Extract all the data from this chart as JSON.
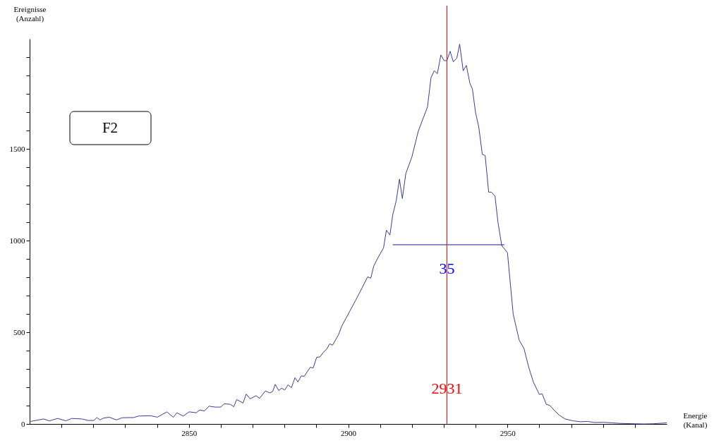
{
  "chart_data": {
    "type": "line",
    "xlabel": "Energie\n(Kanal)",
    "ylabel": "Ereignisse\n(Anzahl)",
    "xlim": [
      2800,
      3000
    ],
    "ylim": [
      0,
      2100
    ],
    "xticks": [
      {
        "value": 2810,
        "label": null
      },
      {
        "value": 2820,
        "label": null
      },
      {
        "value": 2830,
        "label": null
      },
      {
        "value": 2840,
        "label": null
      },
      2850,
      {
        "value": 2860,
        "label": null
      },
      {
        "value": 2870,
        "label": null
      },
      {
        "value": 2880,
        "label": null
      },
      {
        "value": 2890,
        "label": null
      },
      2900,
      {
        "value": 2910,
        "label": null
      },
      {
        "value": 2920,
        "label": null
      },
      {
        "value": 2930,
        "label": null
      },
      {
        "value": 2940,
        "label": null
      },
      2950,
      {
        "value": 2960,
        "label": null
      },
      {
        "value": 2970,
        "label": null
      },
      {
        "value": 2980,
        "label": null
      },
      {
        "value": 2990,
        "label": null
      }
    ],
    "yticks": [
      0,
      {
        "value": 100,
        "label": null
      },
      {
        "value": 200,
        "label": null
      },
      {
        "value": 300,
        "label": null
      },
      {
        "value": 400,
        "label": null
      },
      500,
      {
        "value": 600,
        "label": null
      },
      {
        "value": 700,
        "label": null
      },
      {
        "value": 800,
        "label": null
      },
      {
        "value": 900,
        "label": null
      },
      1000,
      {
        "value": 1100,
        "label": null
      },
      {
        "value": 1200,
        "label": null
      },
      {
        "value": 1300,
        "label": null
      },
      {
        "value": 1400,
        "label": null
      },
      1500,
      {
        "value": 1600,
        "label": null
      },
      {
        "value": 1700,
        "label": null
      },
      {
        "value": 1800,
        "label": null
      },
      {
        "value": 1900,
        "label": null
      },
      {
        "value": 2000,
        "label": null
      }
    ],
    "grid": false,
    "marker": "none",
    "line_style": "solid",
    "series": [
      {
        "color": "#3c3c9c",
        "x": [
          2800.3,
          2804.4,
          2806.2,
          2808.8,
          2811.4,
          2813.2,
          2816.5,
          2818.4,
          2820.2,
          2821.1,
          2822.1,
          2823.2,
          2825.0,
          2827.2,
          2829.1,
          2832.7,
          2834.2,
          2837.9,
          2840.1,
          2843.1,
          2845.1,
          2846.2,
          2848.2,
          2850.1,
          2852.3,
          2853.4,
          2854.9,
          2856.3,
          2858.2,
          2860.0,
          2861.1,
          2863.0,
          2864.1,
          2865.0,
          2867.0,
          2868.0,
          2869.2,
          2871.1,
          2872.2,
          2874.0,
          2875.4,
          2876.3,
          2877.1,
          2878.2,
          2879.1,
          2880.1,
          2881.1,
          2882.2,
          2883.3,
          2884.2,
          2885.3,
          2886.2,
          2888.1,
          2889.0,
          2890.1,
          2891.2,
          2892.1,
          2893.2,
          2894.2,
          2895.1,
          2896.9,
          2898.0,
          2900.6,
          2902.4,
          2904.3,
          2906.1,
          2907.1,
          2908.0,
          2909.4,
          2911.1,
          2912.0,
          2913.1,
          2914.0,
          2915.1,
          2916.1,
          2917.0,
          2918.1,
          2920.0,
          2922.0,
          2924.9,
          2926.0,
          2927.0,
          2928.0,
          2929.1,
          2930.1,
          2931.0,
          2932.0,
          2933.0,
          2934.1,
          2935.0,
          2936.1,
          2937.1,
          2938.2,
          2939.0,
          2940.0,
          2941.0,
          2942.1,
          2943.0,
          2944.1,
          2945.0,
          2946.1,
          2947.0,
          2948.2,
          2950.0,
          2951.8,
          2953.7,
          2955.2,
          2956.6,
          2958.1,
          2960.0,
          2960.9,
          2962.2,
          2963.3,
          2964.7,
          2966.2,
          2968.1,
          2970.6,
          2972.9,
          2975.1,
          2977.3,
          2980.2,
          2982.8,
          2985.4,
          2989.8,
          2992.8,
          2995.7,
          3000.0
        ],
        "values": [
          14,
          27,
          17,
          30,
          17,
          30,
          27,
          19,
          19,
          35,
          22,
          32,
          37,
          22,
          34,
          35,
          43,
          45,
          37,
          66,
          36,
          61,
          43,
          66,
          61,
          76,
          71,
          97,
          92,
          92,
          110,
          107,
          94,
          133,
          114,
          163,
          137,
          154,
          140,
          180,
          169,
          177,
          216,
          182,
          195,
          185,
          213,
          198,
          252,
          229,
          262,
          260,
          309,
          305,
          363,
          366,
          389,
          407,
          437,
          430,
          484,
          534,
          618,
          676,
          740,
          802,
          795,
          860,
          908,
          960,
          1056,
          1030,
          1141,
          1218,
          1335,
          1229,
          1366,
          1456,
          1596,
          1729,
          1888,
          1926,
          1910,
          2012,
          1981,
          1981,
          2032,
          1974,
          1994,
          2071,
          1926,
          1955,
          1858,
          1826,
          1696,
          1619,
          1470,
          1464,
          1264,
          1264,
          1242,
          1102,
          973,
          934,
          598,
          456,
          411,
          314,
          230,
          161,
          164,
          107,
          101,
          74,
          49,
          27,
          17,
          12,
          14,
          8,
          9,
          6,
          3,
          1,
          0,
          1,
          6
        ]
      },
      {
        "color": "#1a1aa0",
        "x": [
          2914,
          2949
        ],
        "values": [
          977,
          977
        ]
      }
    ],
    "ref_lines": [
      {
        "axis": "x",
        "value": 2931,
        "label": "2931",
        "color": "#ff0000"
      }
    ],
    "annotations": [
      {
        "text": "35",
        "x": 2931,
        "y": 845
      },
      "F2"
    ]
  }
}
